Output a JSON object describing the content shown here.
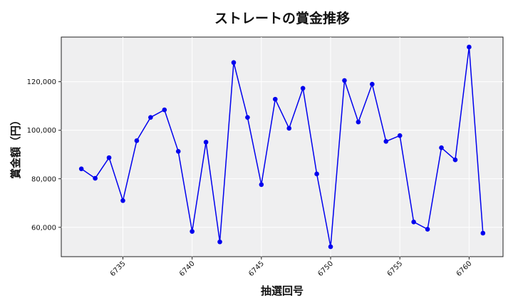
{
  "chart_data": {
    "type": "line",
    "title": "ストレートの賞金推移",
    "xlabel": "抽選回号",
    "ylabel": "賞金額（円）",
    "x": [
      6732,
      6733,
      6734,
      6735,
      6736,
      6737,
      6738,
      6739,
      6740,
      6741,
      6742,
      6743,
      6744,
      6745,
      6746,
      6747,
      6748,
      6749,
      6750,
      6751,
      6752,
      6753,
      6754,
      6755,
      6756,
      6757,
      6758,
      6759,
      6760,
      6761
    ],
    "series": [
      {
        "values": [
          84100,
          80200,
          88700,
          71000,
          95700,
          105300,
          108400,
          91300,
          58300,
          95100,
          54000,
          127900,
          105300,
          77600,
          112800,
          100800,
          117300,
          82000,
          52000,
          120500,
          103400,
          119000,
          95400,
          97800,
          62200,
          59200,
          92800,
          87800,
          134300,
          57600
        ],
        "color": "#0000ee"
      }
    ],
    "xticks": [
      6735,
      6740,
      6745,
      6750,
      6755,
      6760
    ],
    "yticks": [
      60000,
      80000,
      100000,
      120000
    ],
    "xtick_labels": [
      "6735",
      "6740",
      "6745",
      "6750",
      "6755",
      "6760"
    ],
    "ytick_labels": [
      "60,000",
      "80,000",
      "100,000",
      "120,000"
    ],
    "xlim": [
      6730.55,
      6762.45
    ],
    "ylim": [
      47900,
      138400
    ],
    "grid": true,
    "plot_background": "#efeff0"
  }
}
